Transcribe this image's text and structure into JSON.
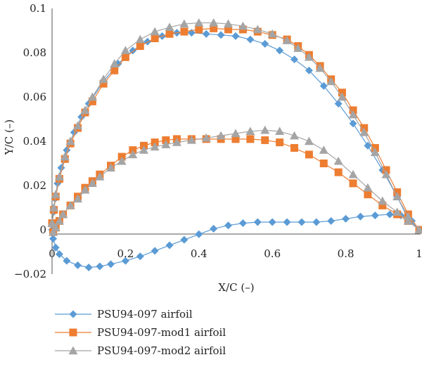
{
  "chart_data": {
    "type": "scatter",
    "title": "",
    "xlabel": "X/C (–)",
    "ylabel": "Y/C (–)",
    "xlim": [
      0,
      1
    ],
    "ylim": [
      -0.02,
      0.1
    ],
    "x_ticks": [
      0,
      0.2,
      0.4,
      0.6,
      0.8,
      1
    ],
    "x_tick_labels": [
      "0",
      "0.2",
      "0.4",
      "0.6",
      "0.8",
      "1"
    ],
    "y_ticks": [
      -0.02,
      0,
      0.02,
      0.04,
      0.06,
      0.08,
      0.1
    ],
    "y_tick_labels": [
      "−0.02",
      "0",
      "0.02",
      "0.04",
      "0.06",
      "0.08",
      "0.1"
    ],
    "grid": false,
    "legend_position": "bottom-left",
    "series": [
      {
        "name": "PSU94-097 airfoil",
        "color": "#5b9bd5",
        "marker": "diamond",
        "points": [
          [
            1.0,
            0.0
          ],
          [
            0.97,
            0.005
          ],
          [
            0.94,
            0.015
          ],
          [
            0.9,
            0.027
          ],
          [
            0.86,
            0.038
          ],
          [
            0.82,
            0.048
          ],
          [
            0.78,
            0.057
          ],
          [
            0.74,
            0.065
          ],
          [
            0.7,
            0.072
          ],
          [
            0.66,
            0.077
          ],
          [
            0.62,
            0.081
          ],
          [
            0.58,
            0.084
          ],
          [
            0.54,
            0.086
          ],
          [
            0.5,
            0.0875
          ],
          [
            0.46,
            0.088
          ],
          [
            0.42,
            0.0885
          ],
          [
            0.38,
            0.089
          ],
          [
            0.34,
            0.089
          ],
          [
            0.3,
            0.0875
          ],
          [
            0.26,
            0.085
          ],
          [
            0.22,
            0.081
          ],
          [
            0.18,
            0.075
          ],
          [
            0.14,
            0.067
          ],
          [
            0.1,
            0.057
          ],
          [
            0.08,
            0.051
          ],
          [
            0.06,
            0.044
          ],
          [
            0.04,
            0.036
          ],
          [
            0.025,
            0.028
          ],
          [
            0.015,
            0.021
          ],
          [
            0.008,
            0.014
          ],
          [
            0.004,
            0.008
          ],
          [
            0.001,
            0.003
          ],
          [
            0.0,
            0.0
          ],
          [
            0.003,
            -0.004
          ],
          [
            0.01,
            -0.008
          ],
          [
            0.02,
            -0.011
          ],
          [
            0.04,
            -0.014
          ],
          [
            0.07,
            -0.016
          ],
          [
            0.1,
            -0.017
          ],
          [
            0.13,
            -0.0165
          ],
          [
            0.16,
            -0.0155
          ],
          [
            0.2,
            -0.014
          ],
          [
            0.24,
            -0.012
          ],
          [
            0.28,
            -0.0095
          ],
          [
            0.32,
            -0.007
          ],
          [
            0.36,
            -0.0045
          ],
          [
            0.4,
            -0.002
          ],
          [
            0.44,
            0.0005
          ],
          [
            0.48,
            0.002
          ],
          [
            0.52,
            0.003
          ],
          [
            0.56,
            0.0035
          ],
          [
            0.6,
            0.0035
          ],
          [
            0.64,
            0.0035
          ],
          [
            0.68,
            0.0035
          ],
          [
            0.72,
            0.0035
          ],
          [
            0.76,
            0.004
          ],
          [
            0.8,
            0.005
          ],
          [
            0.84,
            0.006
          ],
          [
            0.88,
            0.0065
          ],
          [
            0.92,
            0.007
          ],
          [
            0.95,
            0.0065
          ],
          [
            0.98,
            0.004
          ],
          [
            1.0,
            0.0
          ]
        ]
      },
      {
        "name": "PSU94-097-mod1 airfoil",
        "color": "#ed7d31",
        "marker": "square",
        "points": [
          [
            1.0,
            0.0
          ],
          [
            0.97,
            0.007
          ],
          [
            0.94,
            0.017
          ],
          [
            0.91,
            0.027
          ],
          [
            0.88,
            0.037
          ],
          [
            0.85,
            0.046
          ],
          [
            0.82,
            0.054
          ],
          [
            0.79,
            0.062
          ],
          [
            0.76,
            0.068
          ],
          [
            0.73,
            0.074
          ],
          [
            0.7,
            0.079
          ],
          [
            0.67,
            0.083
          ],
          [
            0.64,
            0.086
          ],
          [
            0.6,
            0.088
          ],
          [
            0.56,
            0.0895
          ],
          [
            0.52,
            0.0905
          ],
          [
            0.48,
            0.0905
          ],
          [
            0.44,
            0.091
          ],
          [
            0.4,
            0.0905
          ],
          [
            0.36,
            0.0895
          ],
          [
            0.32,
            0.0885
          ],
          [
            0.28,
            0.0865
          ],
          [
            0.24,
            0.083
          ],
          [
            0.2,
            0.078
          ],
          [
            0.17,
            0.072
          ],
          [
            0.14,
            0.066
          ],
          [
            0.11,
            0.058
          ],
          [
            0.09,
            0.053
          ],
          [
            0.07,
            0.046
          ],
          [
            0.05,
            0.039
          ],
          [
            0.035,
            0.032
          ],
          [
            0.02,
            0.023
          ],
          [
            0.01,
            0.015
          ],
          [
            0.005,
            0.009
          ],
          [
            0.0,
            0.003
          ],
          [
            0.003,
            -0.001
          ],
          [
            0.01,
            0.001
          ],
          [
            0.02,
            0.004
          ],
          [
            0.03,
            0.007
          ],
          [
            0.05,
            0.011
          ],
          [
            0.07,
            0.015
          ],
          [
            0.09,
            0.019
          ],
          [
            0.11,
            0.022
          ],
          [
            0.13,
            0.025
          ],
          [
            0.16,
            0.029
          ],
          [
            0.19,
            0.033
          ],
          [
            0.22,
            0.036
          ],
          [
            0.25,
            0.038
          ],
          [
            0.28,
            0.0395
          ],
          [
            0.31,
            0.0405
          ],
          [
            0.34,
            0.041
          ],
          [
            0.38,
            0.041
          ],
          [
            0.42,
            0.041
          ],
          [
            0.46,
            0.041
          ],
          [
            0.5,
            0.041
          ],
          [
            0.54,
            0.041
          ],
          [
            0.58,
            0.0405
          ],
          [
            0.62,
            0.0395
          ],
          [
            0.66,
            0.037
          ],
          [
            0.7,
            0.034
          ],
          [
            0.74,
            0.03
          ],
          [
            0.78,
            0.026
          ],
          [
            0.82,
            0.021
          ],
          [
            0.86,
            0.016
          ],
          [
            0.9,
            0.011
          ],
          [
            0.94,
            0.007
          ],
          [
            0.97,
            0.004
          ],
          [
            1.0,
            0.0
          ]
        ]
      },
      {
        "name": "PSU94-097-mod2 airfoil",
        "color": "#a5a5a5",
        "marker": "triangle",
        "points": [
          [
            1.0,
            0.0
          ],
          [
            0.97,
            0.006
          ],
          [
            0.94,
            0.015
          ],
          [
            0.91,
            0.025
          ],
          [
            0.88,
            0.035
          ],
          [
            0.85,
            0.044
          ],
          [
            0.82,
            0.052
          ],
          [
            0.79,
            0.06
          ],
          [
            0.76,
            0.067
          ],
          [
            0.73,
            0.073
          ],
          [
            0.7,
            0.078
          ],
          [
            0.67,
            0.082
          ],
          [
            0.64,
            0.0855
          ],
          [
            0.6,
            0.0885
          ],
          [
            0.56,
            0.0905
          ],
          [
            0.52,
            0.092
          ],
          [
            0.48,
            0.093
          ],
          [
            0.44,
            0.0935
          ],
          [
            0.4,
            0.0935
          ],
          [
            0.36,
            0.093
          ],
          [
            0.32,
            0.0915
          ],
          [
            0.28,
            0.0895
          ],
          [
            0.24,
            0.086
          ],
          [
            0.2,
            0.081
          ],
          [
            0.17,
            0.075
          ],
          [
            0.14,
            0.068
          ],
          [
            0.11,
            0.06
          ],
          [
            0.09,
            0.054
          ],
          [
            0.07,
            0.047
          ],
          [
            0.05,
            0.04
          ],
          [
            0.035,
            0.033
          ],
          [
            0.02,
            0.024
          ],
          [
            0.01,
            0.016
          ],
          [
            0.005,
            0.01
          ],
          [
            0.0,
            0.003
          ],
          [
            0.003,
            -0.001
          ],
          [
            0.01,
            0.001
          ],
          [
            0.02,
            0.004
          ],
          [
            0.03,
            0.007
          ],
          [
            0.05,
            0.011
          ],
          [
            0.07,
            0.014
          ],
          [
            0.09,
            0.018
          ],
          [
            0.11,
            0.021
          ],
          [
            0.13,
            0.024
          ],
          [
            0.16,
            0.028
          ],
          [
            0.19,
            0.031
          ],
          [
            0.22,
            0.034
          ],
          [
            0.25,
            0.036
          ],
          [
            0.28,
            0.0375
          ],
          [
            0.31,
            0.0385
          ],
          [
            0.34,
            0.0395
          ],
          [
            0.38,
            0.0405
          ],
          [
            0.42,
            0.0415
          ],
          [
            0.46,
            0.0425
          ],
          [
            0.5,
            0.0435
          ],
          [
            0.54,
            0.0445
          ],
          [
            0.58,
            0.045
          ],
          [
            0.62,
            0.0445
          ],
          [
            0.66,
            0.0425
          ],
          [
            0.7,
            0.04
          ],
          [
            0.74,
            0.036
          ],
          [
            0.78,
            0.031
          ],
          [
            0.82,
            0.025
          ],
          [
            0.86,
            0.019
          ],
          [
            0.9,
            0.013
          ],
          [
            0.94,
            0.008
          ],
          [
            0.97,
            0.004
          ],
          [
            1.0,
            0.0
          ]
        ]
      }
    ]
  }
}
